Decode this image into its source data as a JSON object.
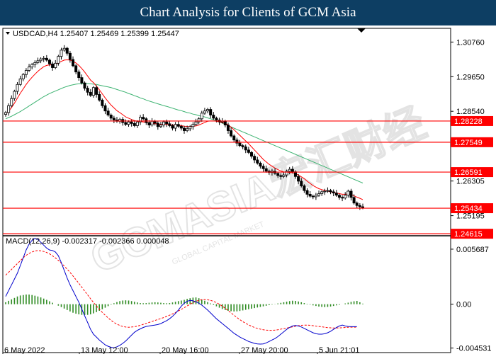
{
  "banner": {
    "title": "Chart Analysis for Clients of GCM Asia"
  },
  "watermark": {
    "text": "GCMASIA宏汇财经",
    "subtext": "GLOBAL CAPITAL MARKET"
  },
  "colors": {
    "bull_fill": "#ffffff",
    "bear_fill": "#000000",
    "ma_fast": "#ff0000",
    "ma_slow": "#3cb371",
    "level_line": "#ff0000",
    "level_tag_bg": "#ff0000",
    "macd_hist": "#2e8b22",
    "macd_signal": "#ff0000",
    "macd_line": "#0000cc"
  },
  "chart_data": [
    {
      "type": "candlestick",
      "header": "USDCAD,H4  1.25407 1.25469 1.25399 1.25447",
      "yticks": [
        "1.30760",
        "1.29650",
        "1.28540",
        "1.26305",
        "1.25195"
      ],
      "ylim": [
        1.2455,
        1.312
      ],
      "xticks": [
        "6 May 2022",
        "13 May 12:00",
        "20 May 16:00",
        "27 May 20:00",
        "5 Jun 21:01"
      ],
      "levels": [
        {
          "label": "1.28228",
          "value": 1.28228
        },
        {
          "label": "1.27549",
          "value": 1.27549
        },
        {
          "label": "1.26591",
          "value": 1.26591
        },
        {
          "label": "1.25434",
          "value": 1.25434
        },
        {
          "label": "1.24615",
          "value": 1.24615
        }
      ],
      "closes": [
        1.285,
        1.2872,
        1.2895,
        1.2918,
        1.294,
        1.2958,
        1.2972,
        1.2985,
        1.2996,
        1.3004,
        1.301,
        1.3016,
        1.3022,
        1.3024,
        1.3018,
        1.3006,
        1.2994,
        1.3008,
        1.303,
        1.305,
        1.3056,
        1.304,
        1.302,
        1.3,
        1.298,
        1.2962,
        1.2945,
        1.2928,
        1.2915,
        1.2905,
        1.293,
        1.2908,
        1.289,
        1.2872,
        1.2855,
        1.2842,
        1.2832,
        1.2826,
        1.2822,
        1.2828,
        1.2818,
        1.2812,
        1.282,
        1.2815,
        1.2808,
        1.282,
        1.2835,
        1.283,
        1.2818,
        1.281,
        1.2822,
        1.2816,
        1.2805,
        1.281,
        1.282,
        1.2814,
        1.2808,
        1.28,
        1.2812,
        1.2806,
        1.28,
        1.2792,
        1.2798,
        1.2805,
        1.2812,
        1.282,
        1.283,
        1.2848,
        1.2855,
        1.286,
        1.2842,
        1.2832,
        1.2826,
        1.282,
        1.2822,
        1.281,
        1.2792,
        1.2775,
        1.2762,
        1.2752,
        1.2744,
        1.274,
        1.273,
        1.2722,
        1.271,
        1.2698,
        1.2688,
        1.2678,
        1.267,
        1.2662,
        1.2658,
        1.2662,
        1.2655,
        1.2648,
        1.2645,
        1.265,
        1.2662,
        1.2668,
        1.266,
        1.2645,
        1.263,
        1.2615,
        1.26,
        1.2588,
        1.2582,
        1.258,
        1.2585,
        1.259,
        1.2596,
        1.2598,
        1.26,
        1.2596,
        1.2592,
        1.2585,
        1.2578,
        1.2576,
        1.2585,
        1.2598,
        1.2578,
        1.256,
        1.2552,
        1.2548,
        1.2545
      ],
      "ma_fast": [
        1.2846,
        1.2854,
        1.2866,
        1.288,
        1.2896,
        1.2912,
        1.2926,
        1.294,
        1.2952,
        1.2963,
        1.2973,
        1.2982,
        1.299,
        1.2997,
        1.3001,
        1.3003,
        1.3003,
        1.3005,
        1.3009,
        1.3014,
        1.3018,
        1.3019,
        1.3018,
        1.3015,
        1.3009,
        1.3001,
        1.2991,
        1.298,
        1.2967,
        1.2954,
        1.2946,
        1.2935,
        1.2923,
        1.291,
        1.2897,
        1.2885,
        1.2874,
        1.2865,
        1.2856,
        1.285,
        1.2843,
        1.2836,
        1.2832,
        1.2828,
        1.2824,
        1.2822,
        1.2821,
        1.282,
        1.2818,
        1.2816,
        1.2815,
        1.2814,
        1.2813,
        1.2812,
        1.2812,
        1.2812,
        1.2811,
        1.281,
        1.281,
        1.2809,
        1.2808,
        1.2806,
        1.2805,
        1.2805,
        1.2806,
        1.2807,
        1.281,
        1.2814,
        1.2818,
        1.2822,
        1.2823,
        1.2823,
        1.2822,
        1.282,
        1.2818,
        1.2815,
        1.281,
        1.2803,
        1.2795,
        1.2786,
        1.2777,
        1.2768,
        1.2759,
        1.275,
        1.274,
        1.273,
        1.272,
        1.271,
        1.27,
        1.2692,
        1.2684,
        1.2678,
        1.2672,
        1.2667,
        1.2663,
        1.266,
        1.2659,
        1.2658,
        1.2657,
        1.2654,
        1.265,
        1.2644,
        1.2638,
        1.263,
        1.2623,
        1.2616,
        1.2611,
        1.2606,
        1.2603,
        1.26,
        1.2598,
        1.2596,
        1.2594,
        1.2592,
        1.259,
        1.2588,
        1.2588,
        1.2589,
        1.2587,
        1.2583,
        1.2579,
        1.2575,
        1.2571
      ],
      "ma_slow": [
        1.283,
        1.2834,
        1.2838,
        1.2843,
        1.2848,
        1.2853,
        1.2859,
        1.2865,
        1.2871,
        1.2877,
        1.2883,
        1.2889,
        1.2895,
        1.2901,
        1.2906,
        1.2911,
        1.2915,
        1.2919,
        1.2923,
        1.2927,
        1.2931,
        1.2934,
        1.2937,
        1.2939,
        1.2941,
        1.2942,
        1.2943,
        1.2943,
        1.2943,
        1.2942,
        1.2941,
        1.294,
        1.2938,
        1.2936,
        1.2934,
        1.2932,
        1.293,
        1.2927,
        1.2924,
        1.2921,
        1.2918,
        1.2915,
        1.2911,
        1.2908,
        1.2904,
        1.2901,
        1.2897,
        1.2894,
        1.289,
        1.2887,
        1.2884,
        1.2881,
        1.2878,
        1.2875,
        1.2872,
        1.287,
        1.2867,
        1.2864,
        1.2861,
        1.2858,
        1.2856,
        1.2853,
        1.285,
        1.2848,
        1.2845,
        1.2843,
        1.284,
        1.2838,
        1.2836,
        1.2833,
        1.283,
        1.2827,
        1.2823,
        1.282,
        1.2816,
        1.2812,
        1.2808,
        1.2804,
        1.28,
        1.2796,
        1.2792,
        1.2788,
        1.2784,
        1.278,
        1.2776,
        1.2772,
        1.2768,
        1.2764,
        1.276,
        1.2756,
        1.2752,
        1.2748,
        1.2744,
        1.274,
        1.2736,
        1.2732,
        1.2728,
        1.2724,
        1.272,
        1.2716,
        1.2712,
        1.2708,
        1.2704,
        1.27,
        1.2696,
        1.2692,
        1.2688,
        1.2684,
        1.268,
        1.2676,
        1.2672,
        1.2668,
        1.2664,
        1.266,
        1.2656,
        1.2652,
        1.2648,
        1.2644,
        1.264,
        1.2636,
        1.2632,
        1.2628,
        1.2624
      ]
    },
    {
      "type": "macd",
      "header": "MACD(12,26,9) -0.002317 -0.002366 0.000048",
      "yticks": [
        "0.005687",
        "0.00",
        "-0.004531"
      ],
      "ylim": [
        -0.005,
        0.007
      ],
      "histogram": [
        0.0002,
        0.00035,
        0.0005,
        0.00065,
        0.0008,
        0.0009,
        0.00095,
        0.001,
        0.001,
        0.00095,
        0.00088,
        0.0008,
        0.0007,
        0.00058,
        0.00045,
        0.0003,
        0.00015,
        0.0,
        -0.00015,
        -0.0003,
        -0.00045,
        -0.0006,
        -0.00075,
        -0.00088,
        -0.00098,
        -0.00105,
        -0.0011,
        -0.00112,
        -0.0011,
        -0.00105,
        -0.00095,
        -0.00082,
        -0.00068,
        -0.00052,
        -0.00036,
        -0.0002,
        -5e-05,
        0.0001,
        0.00022,
        0.00032,
        0.00038,
        0.0004,
        0.00038,
        0.00032,
        0.00025,
        0.00018,
        0.00012,
        0.0001,
        0.00012,
        0.00015,
        0.00018,
        0.0002,
        0.00018,
        0.00015,
        0.00012,
        0.0001,
        0.00012,
        0.00018,
        0.00025,
        0.00032,
        0.00038,
        0.00045,
        0.00055,
        0.00062,
        0.00068,
        0.0007,
        0.00062,
        0.0005,
        0.00036,
        0.00022,
        8e-05,
        -8e-05,
        -0.00022,
        -0.00036,
        -0.0005,
        -0.0006,
        -0.00068,
        -0.00072,
        -0.00075,
        -0.00074,
        -0.0007,
        -0.00064,
        -0.00058,
        -0.00052,
        -0.00046,
        -0.0004,
        -0.00034,
        -0.00028,
        -0.00022,
        -0.00016,
        -0.0001,
        -4e-05,
        2e-05,
        8e-05,
        0.00014,
        0.0002,
        0.00026,
        0.00032,
        0.00036,
        0.00034,
        0.00028,
        0.0002,
        0.00012,
        4e-05,
        -4e-05,
        -0.00012,
        -0.00018,
        -0.00024,
        -0.00028,
        -0.0003,
        -0.00028,
        -0.00024,
        -0.00018,
        -0.00012,
        -6e-05,
        0.0,
        8e-05,
        0.00016,
        0.00024,
        0.0003,
        0.00034,
        0.0002,
        6e-05
      ],
      "signal": [
        0.003,
        0.0033,
        0.0036,
        0.0039,
        0.0042,
        0.0045,
        0.0048,
        0.00505,
        0.00525,
        0.0054,
        0.0055,
        0.00555,
        0.00552,
        0.00545,
        0.00535,
        0.0052,
        0.005,
        0.00478,
        0.00452,
        0.00424,
        0.00395,
        0.00362,
        0.00328,
        0.00292,
        0.00254,
        0.00216,
        0.00176,
        0.00136,
        0.00096,
        0.00056,
        0.00018,
        -0.00018,
        -0.00052,
        -0.00084,
        -0.00114,
        -0.00142,
        -0.00166,
        -0.00188,
        -0.00206,
        -0.0022,
        -0.0023,
        -0.00236,
        -0.00238,
        -0.00236,
        -0.00232,
        -0.00226,
        -0.00218,
        -0.00208,
        -0.00198,
        -0.00188,
        -0.00178,
        -0.00168,
        -0.00158,
        -0.00148,
        -0.00138,
        -0.00126,
        -0.00114,
        -0.001,
        -0.00086,
        -0.0007,
        -0.00054,
        -0.00036,
        -0.00018,
        0.0,
        0.00016,
        0.0003,
        0.0004,
        0.00046,
        0.00048,
        0.00046,
        0.0004,
        0.0003,
        0.00016,
        0.0,
        -0.0002,
        -0.00042,
        -0.00066,
        -0.0009,
        -0.00114,
        -0.00138,
        -0.0016,
        -0.0018,
        -0.00198,
        -0.00214,
        -0.00228,
        -0.0024,
        -0.0025,
        -0.00258,
        -0.00264,
        -0.00268,
        -0.0027,
        -0.0027,
        -0.00268,
        -0.00264,
        -0.00258,
        -0.00252,
        -0.00246,
        -0.0024,
        -0.00234,
        -0.00228,
        -0.00222,
        -0.00218,
        -0.00216,
        -0.00216,
        -0.00218,
        -0.00222,
        -0.00226,
        -0.0023,
        -0.00234,
        -0.00238,
        -0.00242,
        -0.00244,
        -0.00246,
        -0.00246,
        -0.00245,
        -0.00243,
        -0.0024,
        -0.00238,
        -0.00237,
        -0.00237,
        -0.00237
      ],
      "macd": [
        0.0008,
        0.0014,
        0.002,
        0.0026,
        0.0032,
        0.004,
        0.0048,
        0.0056,
        0.0062,
        0.0066,
        0.0068,
        0.0067,
        0.0064,
        0.0061,
        0.0058,
        0.0056,
        0.00555,
        0.0054,
        0.005,
        0.0043,
        0.0035,
        0.0027,
        0.002,
        0.0014,
        0.0008,
        0.0002,
        -0.0005,
        -0.0012,
        -0.0019,
        -0.0026,
        -0.0031,
        -0.0034,
        -0.0037,
        -0.00395,
        -0.0042,
        -0.00435,
        -0.00445,
        -0.0045,
        -0.0044,
        -0.00425,
        -0.00405,
        -0.0038,
        -0.0035,
        -0.0032,
        -0.0029,
        -0.0027,
        -0.00255,
        -0.0024,
        -0.0023,
        -0.00225,
        -0.0022,
        -0.00215,
        -0.0021,
        -0.002,
        -0.00185,
        -0.0017,
        -0.0015,
        -0.00125,
        -0.00095,
        -0.0006,
        -0.0002,
        0.0001,
        0.0003,
        0.0004,
        0.00035,
        0.00025,
        0.0001,
        -0.0001,
        -0.00035,
        -0.0006,
        -0.0009,
        -0.0012,
        -0.0015,
        -0.00175,
        -0.002,
        -0.00225,
        -0.0025,
        -0.00275,
        -0.003,
        -0.0032,
        -0.0034,
        -0.00355,
        -0.0037,
        -0.00385,
        -0.00395,
        -0.00405,
        -0.0041,
        -0.00412,
        -0.0041,
        -0.004,
        -0.00385,
        -0.0037,
        -0.00355,
        -0.00335,
        -0.0031,
        -0.00285,
        -0.0026,
        -0.0024,
        -0.00225,
        -0.0022,
        -0.00225,
        -0.00235,
        -0.0025,
        -0.00265,
        -0.0028,
        -0.00295,
        -0.00305,
        -0.0031,
        -0.0031,
        -0.00305,
        -0.00295,
        -0.0028,
        -0.0026,
        -0.0024,
        -0.00225,
        -0.00215,
        -0.00225,
        -0.0023,
        -0.00232,
        -0.00232,
        -0.00232
      ]
    }
  ]
}
